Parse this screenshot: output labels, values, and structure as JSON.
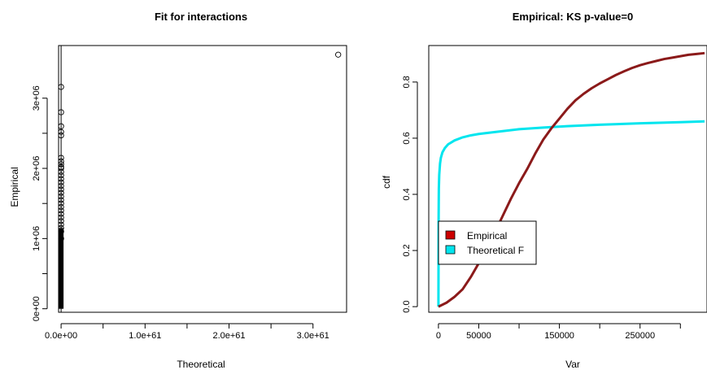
{
  "chart_data": [
    {
      "type": "scatter",
      "title": "Fit for interactions",
      "xlabel": "Theoretical",
      "ylabel": "Empirical",
      "xlim": [
        -3e+59,
        3.4e+61
      ],
      "ylim": [
        -50000.0,
        3750000.0
      ],
      "x_ticks": [
        0,
        1e+61,
        2e+61,
        3e+61
      ],
      "x_tick_labels": [
        "0.0e+00",
        "1.0e+61",
        "2.0e+61",
        "3.0e+61"
      ],
      "y_ticks": [
        0,
        1000000.0,
        2000000.0,
        3000000.0
      ],
      "y_tick_labels": [
        "0e+00",
        "1e+06",
        "2e+06",
        "3e+06"
      ],
      "series": [
        {
          "x": [
            0,
            0,
            0,
            0,
            0,
            0,
            0,
            0,
            0,
            0,
            0,
            0,
            0,
            0,
            0,
            0,
            0,
            0,
            0,
            0,
            0,
            0,
            0,
            0,
            0,
            0,
            0,
            0,
            0,
            3.3e+61
          ],
          "y": [
            3160000,
            2800000,
            2600000,
            2520000,
            2470000,
            2150000,
            2100000,
            2060000,
            2020000,
            2000000,
            1950000,
            1900000,
            1850000,
            1800000,
            1750000,
            1700000,
            1650000,
            1600000,
            1550000,
            1500000,
            1450000,
            1400000,
            1350000,
            1300000,
            1250000,
            1200000,
            1150000,
            1100000,
            1000000,
            3620000
          ]
        }
      ],
      "dense_column": {
        "x": 0,
        "y_from": 0,
        "y_to": 1150000
      },
      "reference_line_x": 0
    },
    {
      "type": "line",
      "title": "Empirical: KS p-value=0",
      "xlabel": "Var",
      "ylabel": "cdf",
      "xlim": [
        -12000,
        333000
      ],
      "ylim": [
        -0.02,
        0.93
      ],
      "x_ticks": [
        0,
        50000,
        150000,
        250000
      ],
      "x_tick_labels": [
        "0",
        "50000",
        "150000",
        "250000"
      ],
      "x_minor_ticks": [
        100000,
        200000,
        300000
      ],
      "y_ticks": [
        0,
        0.2,
        0.4,
        0.6,
        0.8
      ],
      "y_tick_labels": [
        "0.0",
        "0.2",
        "0.4",
        "0.6",
        "0.8"
      ],
      "legend": {
        "placement": "left",
        "entries": [
          {
            "label": "Empirical",
            "color": "#cc0000"
          },
          {
            "label": "Theoretical F",
            "color": "#00e5ee"
          }
        ]
      },
      "series": [
        {
          "name": "Empirical",
          "color": "#8b1a1a",
          "x": [
            0,
            10000,
            20000,
            30000,
            40000,
            50000,
            60000,
            70000,
            80000,
            90000,
            100000,
            110000,
            120000,
            130000,
            140000,
            150000,
            160000,
            170000,
            180000,
            190000,
            200000,
            210000,
            220000,
            230000,
            240000,
            250000,
            260000,
            270000,
            280000,
            290000,
            300000,
            310000,
            320000,
            330000
          ],
          "y": [
            0.0,
            0.014,
            0.035,
            0.062,
            0.105,
            0.155,
            0.21,
            0.265,
            0.325,
            0.385,
            0.44,
            0.49,
            0.545,
            0.595,
            0.635,
            0.67,
            0.705,
            0.735,
            0.758,
            0.778,
            0.795,
            0.81,
            0.825,
            0.838,
            0.85,
            0.86,
            0.868,
            0.875,
            0.882,
            0.887,
            0.892,
            0.897,
            0.9,
            0.903
          ]
        },
        {
          "name": "Theoretical F",
          "color": "#00e5ee",
          "x": [
            0,
            200,
            500,
            1000,
            2000,
            3000,
            5000,
            8000,
            12000,
            20000,
            30000,
            40000,
            50000,
            70000,
            100000,
            130000,
            160000,
            200000,
            250000,
            300000,
            330000
          ],
          "y": [
            0.0,
            0.3,
            0.42,
            0.47,
            0.51,
            0.53,
            0.55,
            0.565,
            0.578,
            0.592,
            0.603,
            0.61,
            0.615,
            0.622,
            0.632,
            0.638,
            0.643,
            0.648,
            0.653,
            0.657,
            0.66
          ]
        }
      ]
    }
  ]
}
